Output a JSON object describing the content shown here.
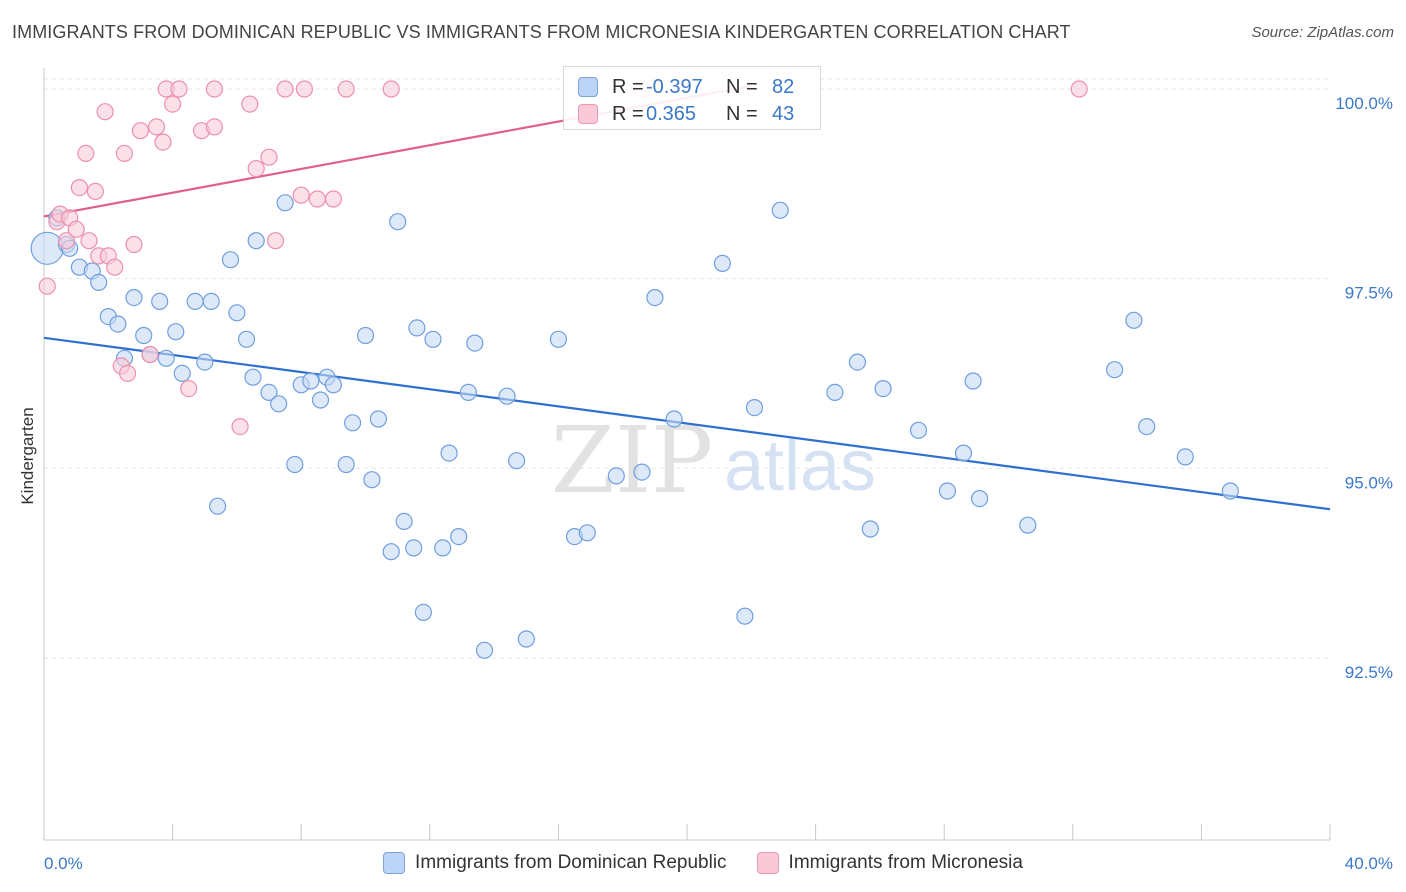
{
  "title": "IMMIGRANTS FROM DOMINICAN REPUBLIC VS IMMIGRANTS FROM MICRONESIA KINDERGARTEN CORRELATION CHART",
  "source": "Source: ZipAtlas.com",
  "watermark": {
    "zip": "ZIP",
    "atlas": "atlas"
  },
  "stats": {
    "r_label": "R =",
    "n_label": "N =",
    "blue": {
      "r": "-0.397",
      "n": "82"
    },
    "pink": {
      "r": "0.365",
      "n": "43"
    }
  },
  "colors": {
    "blue": "#6f9fdf",
    "blue_fill": "#c6d9f4",
    "blue_line": "#2e6fd0",
    "pink": "#ec90ad",
    "pink_fill": "#f9ccd9",
    "pink_line": "#e0608a",
    "tick_label": "#3a78c8"
  },
  "chart_data": {
    "type": "scatter",
    "ylabel": "Kindergarten",
    "x_ticks": {
      "min_label": "0.0%",
      "max_label": "40.0%"
    },
    "y_ticks": [
      {
        "value": 100.0,
        "label": "100.0%"
      },
      {
        "value": 97.5,
        "label": "97.5%"
      },
      {
        "value": 95.0,
        "label": "95.0%"
      },
      {
        "value": 92.5,
        "label": "92.5%"
      }
    ],
    "xlim": [
      0,
      40
    ],
    "ylim": [
      90.1,
      100.25
    ],
    "grid": true,
    "legend_position": "bottom",
    "series": [
      {
        "name": "Immigrants from Dominican Republic",
        "color": "blue",
        "trend": {
          "x0": 0,
          "y0": 96.72,
          "x1": 40,
          "y1": 94.46
        },
        "points": [
          [
            0.1,
            97.9,
            20
          ],
          [
            0.4,
            98.3,
            10
          ],
          [
            0.7,
            97.95,
            10
          ],
          [
            0.8,
            97.9,
            10
          ],
          [
            1.1,
            97.65,
            10
          ],
          [
            1.5,
            97.6,
            10
          ],
          [
            1.7,
            97.45,
            10
          ],
          [
            2.0,
            97.0,
            10
          ],
          [
            2.3,
            96.9,
            10
          ],
          [
            2.5,
            96.45,
            10
          ],
          [
            2.8,
            97.25,
            10
          ],
          [
            3.1,
            96.75,
            10
          ],
          [
            3.3,
            96.5,
            10
          ],
          [
            3.6,
            97.2,
            10
          ],
          [
            3.8,
            96.45,
            10
          ],
          [
            4.1,
            96.8,
            10
          ],
          [
            4.3,
            96.25,
            10
          ],
          [
            4.7,
            97.2,
            10
          ],
          [
            5.0,
            96.4,
            10
          ],
          [
            5.2,
            97.2,
            10
          ],
          [
            5.4,
            94.5,
            10
          ],
          [
            5.8,
            97.75,
            10
          ],
          [
            6.0,
            97.05,
            10
          ],
          [
            6.3,
            96.7,
            10
          ],
          [
            6.5,
            96.2,
            10
          ],
          [
            6.6,
            98.0,
            10
          ],
          [
            7.0,
            96.0,
            10
          ],
          [
            7.3,
            95.85,
            10
          ],
          [
            7.5,
            98.5,
            10
          ],
          [
            7.8,
            95.05,
            10
          ],
          [
            8.0,
            96.1,
            10
          ],
          [
            8.3,
            96.15,
            10
          ],
          [
            8.6,
            95.9,
            10
          ],
          [
            8.8,
            96.2,
            10
          ],
          [
            9.0,
            96.1,
            10
          ],
          [
            9.4,
            95.05,
            10
          ],
          [
            9.6,
            95.6,
            10
          ],
          [
            10.0,
            96.75,
            10
          ],
          [
            10.2,
            94.85,
            10
          ],
          [
            10.4,
            95.65,
            10
          ],
          [
            10.8,
            93.9,
            10
          ],
          [
            11.0,
            98.25,
            10
          ],
          [
            11.2,
            94.3,
            10
          ],
          [
            11.5,
            93.95,
            10
          ],
          [
            11.6,
            96.85,
            10
          ],
          [
            11.8,
            93.1,
            10
          ],
          [
            12.1,
            96.7,
            10
          ],
          [
            12.4,
            93.95,
            10
          ],
          [
            12.6,
            95.2,
            10
          ],
          [
            12.9,
            94.1,
            10
          ],
          [
            13.2,
            96.0,
            10
          ],
          [
            13.4,
            96.65,
            10
          ],
          [
            13.7,
            92.6,
            10
          ],
          [
            14.4,
            95.95,
            10
          ],
          [
            14.7,
            95.1,
            10
          ],
          [
            15.0,
            92.75,
            10
          ],
          [
            16.0,
            96.7,
            10
          ],
          [
            16.5,
            94.1,
            10
          ],
          [
            16.9,
            94.15,
            10
          ],
          [
            17.8,
            94.9,
            10
          ],
          [
            18.6,
            94.95,
            10
          ],
          [
            19.0,
            97.25,
            10
          ],
          [
            19.6,
            95.65,
            10
          ],
          [
            21.1,
            97.7,
            10
          ],
          [
            21.8,
            93.05,
            10
          ],
          [
            22.1,
            95.8,
            10
          ],
          [
            22.9,
            98.4,
            10
          ],
          [
            24.6,
            96.0,
            10
          ],
          [
            25.3,
            96.4,
            10
          ],
          [
            25.7,
            94.2,
            10
          ],
          [
            26.1,
            96.05,
            10
          ],
          [
            27.2,
            95.5,
            10
          ],
          [
            28.1,
            94.7,
            10
          ],
          [
            28.6,
            95.2,
            10
          ],
          [
            28.9,
            96.15,
            10
          ],
          [
            29.1,
            94.6,
            10
          ],
          [
            30.6,
            94.25,
            10
          ],
          [
            33.3,
            96.3,
            10
          ],
          [
            33.9,
            96.95,
            10
          ],
          [
            34.3,
            95.55,
            10
          ],
          [
            35.5,
            95.15,
            10
          ],
          [
            36.9,
            94.7,
            10
          ]
        ]
      },
      {
        "name": "Immigrants from Micronesia",
        "color": "pink",
        "trend": {
          "x0": 0,
          "y0": 98.32,
          "x1": 22.0,
          "y1": 100.04
        },
        "points": [
          [
            0.1,
            97.4,
            10
          ],
          [
            0.4,
            98.25,
            10
          ],
          [
            0.5,
            98.35,
            10
          ],
          [
            0.7,
            98.0,
            10
          ],
          [
            0.8,
            98.3,
            10
          ],
          [
            1.0,
            98.15,
            10
          ],
          [
            1.1,
            98.7,
            10
          ],
          [
            1.3,
            99.15,
            10
          ],
          [
            1.4,
            98.0,
            10
          ],
          [
            1.6,
            98.65,
            10
          ],
          [
            1.7,
            97.8,
            10
          ],
          [
            1.9,
            99.7,
            10
          ],
          [
            2.0,
            97.8,
            10
          ],
          [
            2.2,
            97.65,
            10
          ],
          [
            2.4,
            96.35,
            10
          ],
          [
            2.5,
            99.15,
            10
          ],
          [
            2.6,
            96.25,
            10
          ],
          [
            2.8,
            97.95,
            10
          ],
          [
            3.0,
            99.45,
            10
          ],
          [
            3.3,
            96.5,
            10
          ],
          [
            3.5,
            99.5,
            10
          ],
          [
            3.7,
            99.3,
            10
          ],
          [
            3.8,
            100.0,
            10
          ],
          [
            4.0,
            99.8,
            10
          ],
          [
            4.2,
            100.0,
            10
          ],
          [
            4.5,
            96.05,
            10
          ],
          [
            4.9,
            99.45,
            10
          ],
          [
            5.3,
            99.5,
            10
          ],
          [
            5.3,
            100.0,
            10
          ],
          [
            6.1,
            95.55,
            10
          ],
          [
            6.4,
            99.8,
            10
          ],
          [
            6.6,
            98.95,
            10
          ],
          [
            7.0,
            99.1,
            10
          ],
          [
            7.2,
            98.0,
            10
          ],
          [
            7.5,
            100.0,
            10
          ],
          [
            8.0,
            98.6,
            10
          ],
          [
            8.1,
            100.0,
            10
          ],
          [
            8.5,
            98.55,
            10
          ],
          [
            9.0,
            98.55,
            10
          ],
          [
            9.4,
            100.0,
            10
          ],
          [
            10.8,
            100.0,
            10
          ],
          [
            18.6,
            100.0,
            10
          ],
          [
            32.2,
            100.0,
            10
          ]
        ]
      }
    ]
  }
}
